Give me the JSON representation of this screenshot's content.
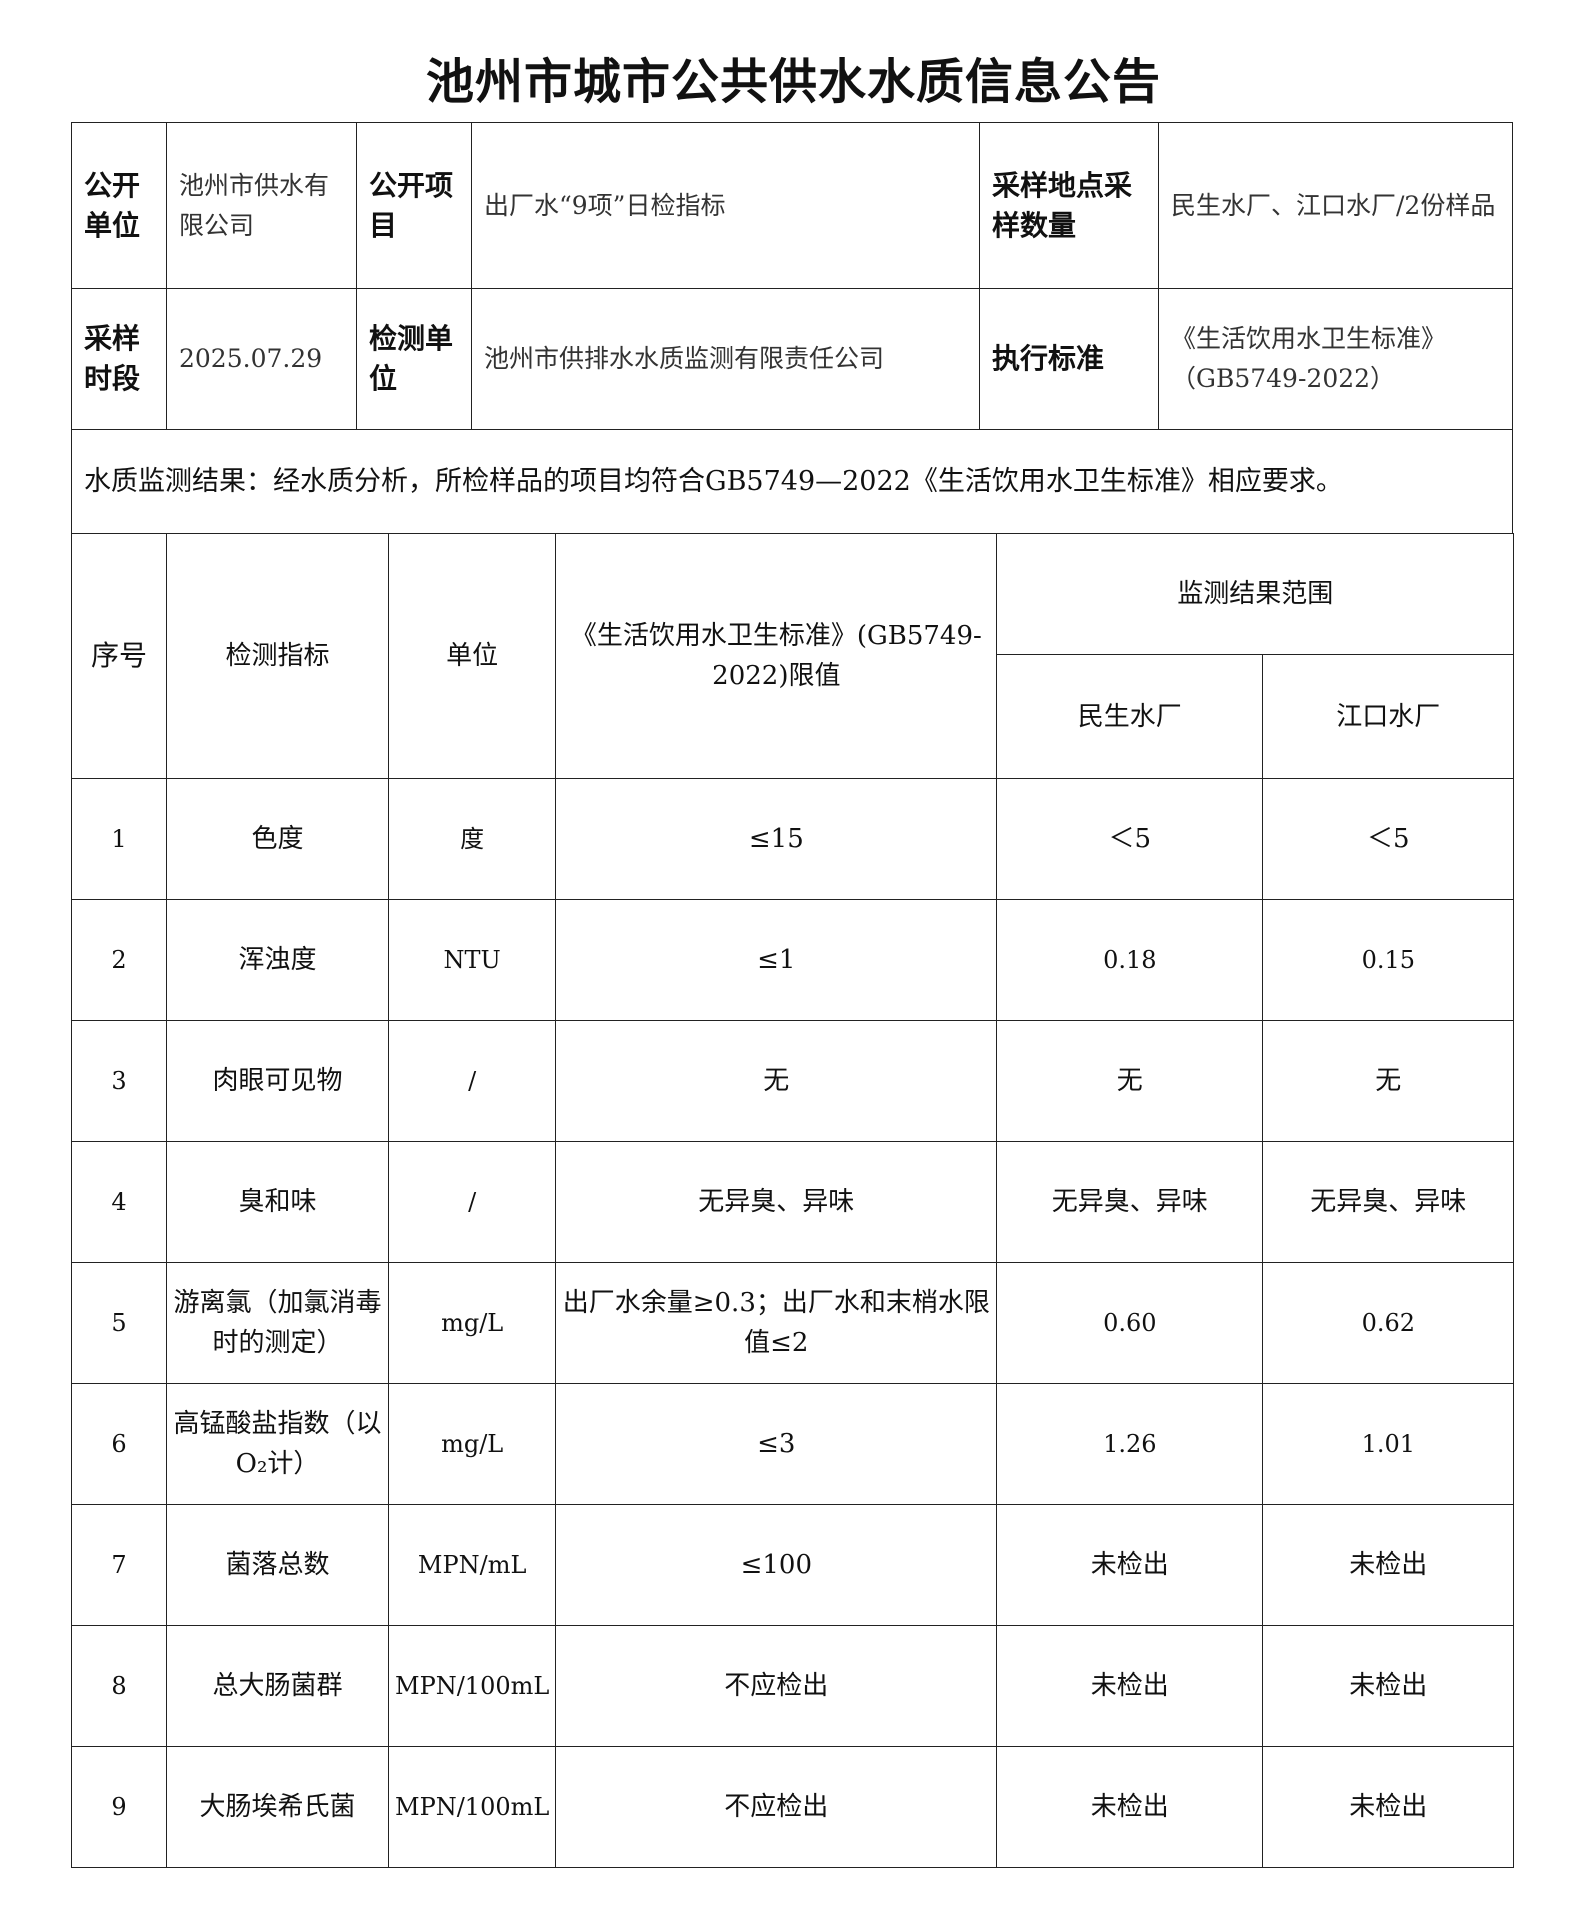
{
  "title": "池州市城市公共供水水质信息公告",
  "info": {
    "unit_label": "公开单位",
    "unit_value": "池州市供水有限公司",
    "item_label": "公开项目",
    "item_value": "出厂水“9项”日检指标",
    "site_label": "采样地点采样数量",
    "site_value": "民生水厂、江口水厂/2份样品",
    "period_label": "采样时段",
    "period_value": "2025.07.29",
    "lab_label": "检测单位",
    "lab_value": "池州市供排水水质监测有限责任公司",
    "std_label": "执行标准",
    "std_value": "《生活饮用水卫生标准》（GB5749-2022）"
  },
  "conclusion": "水质监测结果：经水质分析，所检样品的项目均符合GB5749—2022《生活饮用水卫生标准》相应要求。",
  "table": {
    "headers": {
      "no": "序号",
      "indicator": "检测指标",
      "unit": "单位",
      "limit": "《生活饮用水卫生标准》(GB5749-2022)限值",
      "range": "监测结果范围",
      "plant1": "民生水厂",
      "plant2": "江口水厂"
    },
    "rows": [
      {
        "no": "1",
        "indicator": "色度",
        "unit": "度",
        "limit": "≤15",
        "plant1": "＜5",
        "plant2": "＜5"
      },
      {
        "no": "2",
        "indicator": "浑浊度",
        "unit": "NTU",
        "limit": "≤1",
        "plant1": "0.18",
        "plant2": "0.15"
      },
      {
        "no": "3",
        "indicator": "肉眼可见物",
        "unit": "/",
        "limit": "无",
        "plant1": "无",
        "plant2": "无"
      },
      {
        "no": "4",
        "indicator": "臭和味",
        "unit": "/",
        "limit": "无异臭、异味",
        "plant1": "无异臭、异味",
        "plant2": "无异臭、异味"
      },
      {
        "no": "5",
        "indicator": "游离氯（加氯消毒时的测定）",
        "unit": "mg/L",
        "limit": "出厂水余量≥0.3；出厂水和末梢水限值≤2",
        "plant1": "0.60",
        "plant2": "0.62"
      },
      {
        "no": "6",
        "indicator": "高锰酸盐指数（以O₂计）",
        "unit": "mg/L",
        "limit": "≤3",
        "plant1": "1.26",
        "plant2": "1.01"
      },
      {
        "no": "7",
        "indicator": "菌落总数",
        "unit": "MPN/mL",
        "limit": "≤100",
        "plant1": "未检出",
        "plant2": "未检出"
      },
      {
        "no": "8",
        "indicator": "总大肠菌群",
        "unit": "MPN/100mL",
        "limit": "不应检出",
        "plant1": "未检出",
        "plant2": "未检出"
      },
      {
        "no": "9",
        "indicator": "大肠埃希氏菌",
        "unit": "MPN/100mL",
        "limit": "不应检出",
        "plant1": "未检出",
        "plant2": "未检出"
      }
    ]
  }
}
